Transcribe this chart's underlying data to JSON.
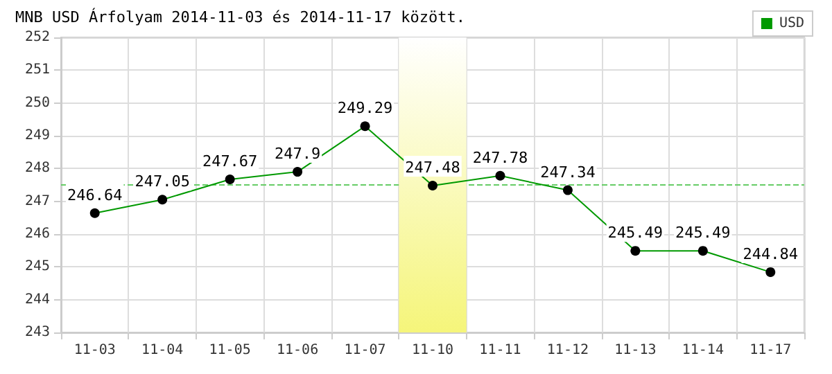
{
  "chart_data": {
    "type": "line",
    "title": "MNB USD Árfolyam 2014-11-03 és 2014-11-17 között.",
    "categories": [
      "11-03",
      "11-04",
      "11-05",
      "11-06",
      "11-07",
      "11-10",
      "11-11",
      "11-12",
      "11-13",
      "11-14",
      "11-17"
    ],
    "series": [
      {
        "name": "USD",
        "color": "#009900",
        "values": [
          246.64,
          247.05,
          247.67,
          247.9,
          249.29,
          247.48,
          247.78,
          247.34,
          245.49,
          245.49,
          244.84
        ]
      }
    ],
    "ylim": [
      243,
      252
    ],
    "yticks": [
      243,
      244,
      245,
      246,
      247,
      248,
      249,
      250,
      251,
      252
    ],
    "grid": true,
    "legend": "top right",
    "marker": "circle",
    "line_style": "solid",
    "data_labels": true,
    "ref_lines": [
      {
        "axis": "y",
        "value": 247.5,
        "label": null,
        "color": "#66cc66",
        "line_style": "dashed"
      }
    ],
    "bands": [
      {
        "axis": "x",
        "from": "11-10",
        "to": "11-10",
        "label": null,
        "color": "#f5f57a"
      }
    ]
  }
}
